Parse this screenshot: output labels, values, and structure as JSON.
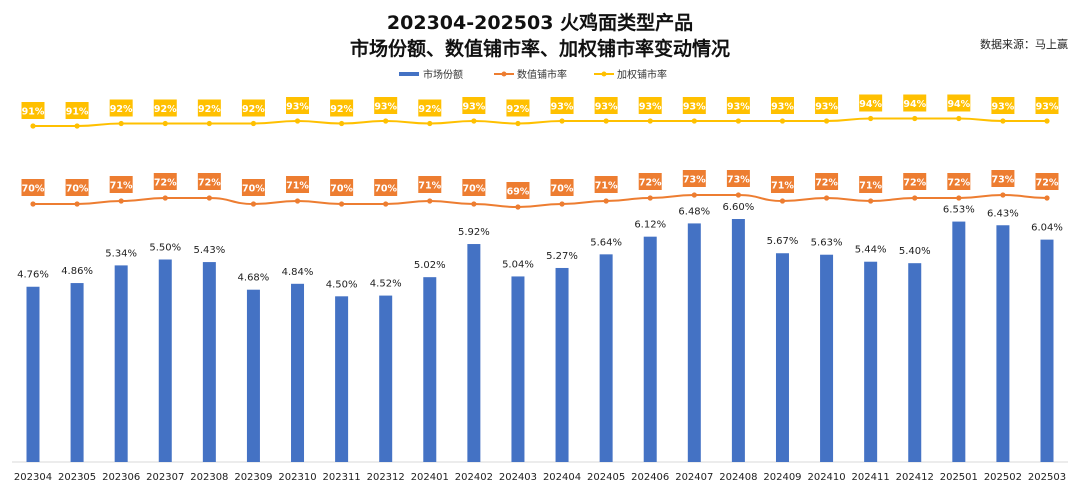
{
  "title_line1": "202304-202503 火鸡面类型产品",
  "title_line2": "市场份额、数值铺市率、加权铺市率变动情况",
  "source": "数据来源：马上赢",
  "chart_data": {
    "type": "bar",
    "categories": [
      "202304",
      "202305",
      "202306",
      "202307",
      "202308",
      "202309",
      "202310",
      "202311",
      "202312",
      "202401",
      "202402",
      "202403",
      "202404",
      "202405",
      "202406",
      "202407",
      "202408",
      "202409",
      "202410",
      "202411",
      "202412",
      "202501",
      "202502",
      "202503"
    ],
    "series": [
      {
        "name": "市场份额",
        "type": "bar",
        "color": "#4472C4",
        "values": [
          4.76,
          4.86,
          5.34,
          5.5,
          5.43,
          4.68,
          4.84,
          4.5,
          4.52,
          5.02,
          5.92,
          5.04,
          5.27,
          5.64,
          6.12,
          6.48,
          6.6,
          5.67,
          5.63,
          5.44,
          5.4,
          6.53,
          6.43,
          6.04
        ],
        "labels": [
          "4.76%",
          "4.86%",
          "5.34%",
          "5.50%",
          "5.43%",
          "4.68%",
          "4.84%",
          "4.50%",
          "4.52%",
          "5.02%",
          "5.92%",
          "5.04%",
          "5.27%",
          "5.64%",
          "6.12%",
          "6.48%",
          "6.60%",
          "5.67%",
          "5.63%",
          "5.44%",
          "5.40%",
          "6.53%",
          "6.43%",
          "6.04%"
        ]
      },
      {
        "name": "数值铺市率",
        "type": "line",
        "color": "#ED7D31",
        "values": [
          70,
          70,
          71,
          72,
          72,
          70,
          71,
          70,
          70,
          71,
          70,
          69,
          70,
          71,
          72,
          73,
          73,
          71,
          72,
          71,
          72,
          72,
          73,
          72
        ],
        "labels": [
          "70%",
          "70%",
          "71%",
          "72%",
          "72%",
          "70%",
          "71%",
          "70%",
          "70%",
          "71%",
          "70%",
          "69%",
          "70%",
          "71%",
          "72%",
          "73%",
          "73%",
          "71%",
          "72%",
          "71%",
          "72%",
          "72%",
          "73%",
          "72%"
        ]
      },
      {
        "name": "加权铺市率",
        "type": "line",
        "color": "#FFC000",
        "values": [
          91,
          91,
          92,
          92,
          92,
          92,
          93,
          92,
          93,
          92,
          93,
          92,
          93,
          93,
          93,
          93,
          93,
          93,
          93,
          94,
          94,
          94,
          93,
          93
        ],
        "labels": [
          "91%",
          "91%",
          "92%",
          "92%",
          "92%",
          "92%",
          "93%",
          "92%",
          "93%",
          "92%",
          "93%",
          "92%",
          "93%",
          "93%",
          "93%",
          "93%",
          "93%",
          "93%",
          "93%",
          "94%",
          "94%",
          "94%",
          "93%",
          "93%"
        ]
      }
    ],
    "legend": [
      "市场份额",
      "数值铺市率",
      "加权铺市率"
    ],
    "legend_position": "top",
    "xlabel": "",
    "ylabel": "",
    "grid": false
  }
}
